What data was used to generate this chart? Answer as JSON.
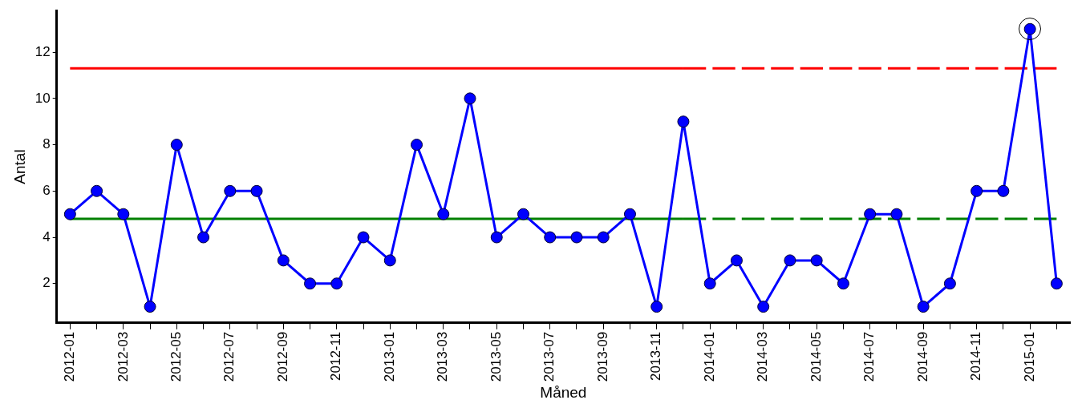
{
  "chart_data": {
    "type": "line",
    "xlabel": "Måned",
    "ylabel": "Antal",
    "categories": [
      "2012-01",
      null,
      "2012-03",
      null,
      "2012-05",
      null,
      "2012-07",
      null,
      "2012-09",
      null,
      "2012-11",
      null,
      "2013-01",
      null,
      "2013-03",
      null,
      "2013-05",
      null,
      "2013-07",
      null,
      "2013-09",
      null,
      "2013-11",
      null,
      "2014-01",
      null,
      "2014-03",
      null,
      "2014-05",
      null,
      "2014-07",
      null,
      "2014-09",
      null,
      "2014-11",
      null,
      "2015-01",
      null
    ],
    "series": [
      {
        "color": "#0000ff",
        "marker": "circle",
        "line_style": "solid",
        "values": [
          5,
          6,
          5,
          1,
          8,
          4,
          6,
          6,
          3,
          2,
          2,
          4,
          3,
          8,
          5,
          10,
          4,
          5,
          4,
          4,
          4,
          5,
          1,
          9,
          2,
          3,
          1,
          3,
          3,
          2,
          5,
          5,
          1,
          2,
          6,
          6,
          13,
          2
        ]
      },
      {
        "color": "#ff0000",
        "marker": "none",
        "line_style": "solid",
        "values": [
          11.3,
          11.3,
          11.3,
          11.3,
          11.3,
          11.3,
          11.3,
          11.3,
          11.3,
          11.3,
          11.3,
          11.3,
          11.3,
          11.3,
          11.3,
          11.3,
          11.3,
          11.3,
          11.3,
          11.3,
          11.3,
          11.3,
          11.3,
          11.3,
          null,
          null,
          null,
          null,
          null,
          null,
          null,
          null,
          null,
          null,
          null,
          null,
          null,
          null
        ]
      },
      {
        "color": "#ff0000",
        "marker": "none",
        "line_style": "dashed",
        "values": [
          null,
          null,
          null,
          null,
          null,
          null,
          null,
          null,
          null,
          null,
          null,
          null,
          null,
          null,
          null,
          null,
          null,
          null,
          null,
          null,
          null,
          null,
          null,
          11.3,
          11.3,
          11.3,
          11.3,
          11.3,
          11.3,
          11.3,
          11.3,
          11.3,
          11.3,
          11.3,
          11.3,
          11.3,
          11.3,
          11.3
        ]
      },
      {
        "color": "#008000",
        "marker": "none",
        "line_style": "solid",
        "values": [
          4.8,
          4.8,
          4.8,
          4.8,
          4.8,
          4.8,
          4.8,
          4.8,
          4.8,
          4.8,
          4.8,
          4.8,
          4.8,
          4.8,
          4.8,
          4.8,
          4.8,
          4.8,
          4.8,
          4.8,
          4.8,
          4.8,
          4.8,
          4.8,
          null,
          null,
          null,
          null,
          null,
          null,
          null,
          null,
          null,
          null,
          null,
          null,
          null,
          null
        ]
      },
      {
        "color": "#008000",
        "marker": "none",
        "line_style": "dashed",
        "values": [
          null,
          null,
          null,
          null,
          null,
          null,
          null,
          null,
          null,
          null,
          null,
          null,
          null,
          null,
          null,
          null,
          null,
          null,
          null,
          null,
          null,
          null,
          null,
          4.8,
          4.8,
          4.8,
          4.8,
          4.8,
          4.8,
          4.8,
          4.8,
          4.8,
          4.8,
          4.8,
          4.8,
          4.8,
          4.8,
          4.8
        ]
      }
    ],
    "ylim": [
      0.3,
      13.8
    ],
    "yticks": [
      2,
      4,
      6,
      8,
      10,
      12
    ],
    "grid": false,
    "legend": false
  }
}
